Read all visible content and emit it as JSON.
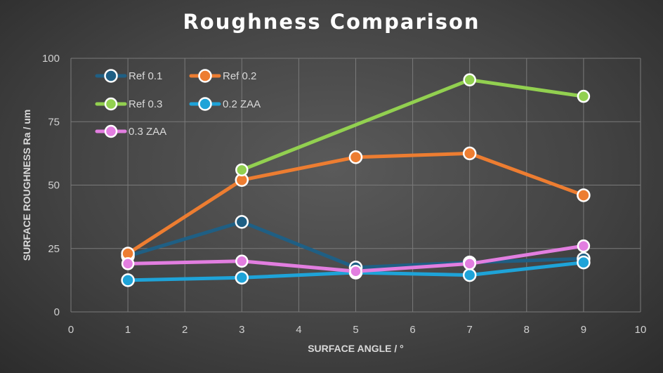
{
  "chart_data": {
    "type": "line",
    "title": "Roughness Comparison",
    "xlabel": "SURFACE ANGLE / °",
    "ylabel": "SURFACE ROUGHNESS Ra / um",
    "xlim": [
      0,
      10
    ],
    "ylim": [
      0,
      100
    ],
    "xticks": [
      0,
      1,
      2,
      3,
      4,
      5,
      6,
      7,
      8,
      9,
      10
    ],
    "yticks": [
      0,
      25,
      50,
      75,
      100
    ],
    "grid": true,
    "legend_position": "top-left",
    "x": [
      1,
      3,
      5,
      7,
      9
    ],
    "series": [
      {
        "name": "Ref 0.1",
        "color": "#1f5f84",
        "marker": "circle-filled",
        "values": [
          22,
          35.5,
          17.5,
          19.5,
          21
        ]
      },
      {
        "name": "Ref 0.2",
        "color": "#ed7d31",
        "marker": "circle-filled",
        "values": [
          23,
          52,
          61,
          62.5,
          46
        ]
      },
      {
        "name": "Ref 0.3",
        "color": "#92d050",
        "marker": "circle-ring",
        "values": [
          null,
          56,
          null,
          91.5,
          85
        ]
      },
      {
        "name": "0.2 ZAA",
        "color": "#1ea3d8",
        "marker": "circle-filled",
        "values": [
          12.5,
          13.5,
          15.5,
          14.5,
          19.5
        ]
      },
      {
        "name": "0.3 ZAA",
        "color": "#e27ee0",
        "marker": "circle-ring",
        "values": [
          19,
          20,
          16,
          19,
          26
        ]
      }
    ]
  }
}
